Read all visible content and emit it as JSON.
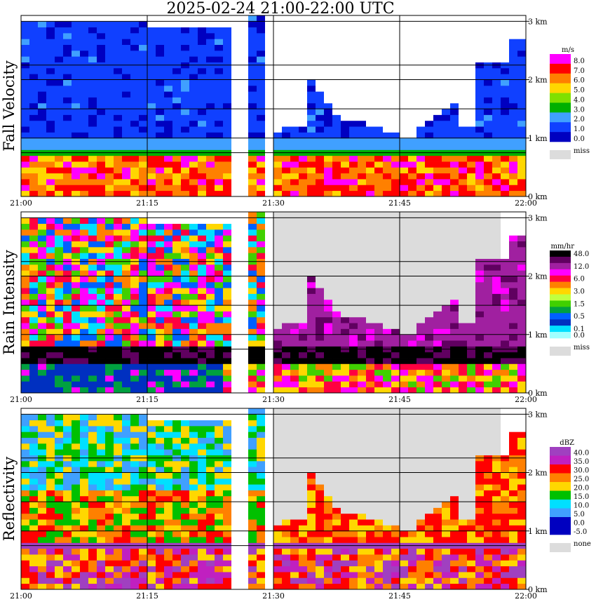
{
  "title": "2025-02-24   21:00-22:00 UTC",
  "x_ticks": [
    "21:00",
    "21:15",
    "21:30",
    "21:45",
    "22:00"
  ],
  "y_ticks": [
    "0 km",
    "1 km",
    "2 km",
    "3 km"
  ],
  "chart_data": [
    {
      "type": "heatmap",
      "ylabel": "Fall Velocity",
      "unit": "m/s",
      "xlim": [
        "21:00",
        "22:00"
      ],
      "ylim_km": [
        0,
        3.1
      ],
      "colorbar": [
        {
          "label": "8.0",
          "color": "#ff00ff"
        },
        {
          "label": "7.0",
          "color": "#ff0000"
        },
        {
          "label": "6.0",
          "color": "#ff8000"
        },
        {
          "label": "5.0",
          "color": "#ffd700"
        },
        {
          "label": "4.0",
          "color": "#80e000"
        },
        {
          "label": "3.0",
          "color": "#00b000"
        },
        {
          "label": "2.0",
          "color": "#40a0ff"
        },
        {
          "label": "1.0",
          "color": "#1040ff"
        },
        {
          "label": "0.0",
          "color": "#0000c0"
        }
      ],
      "missing_label": "miss",
      "missing_color": "#dcdcdc"
    },
    {
      "type": "heatmap",
      "ylabel": "Rain Intensity",
      "unit": "mm/hr",
      "xlim": [
        "21:00",
        "22:00"
      ],
      "ylim_km": [
        0,
        3.1
      ],
      "colorbar": [
        {
          "label": "48.0",
          "color": "#000000"
        },
        {
          "label": "",
          "color": "#600060"
        },
        {
          "label": "12.0",
          "color": "#a020a0"
        },
        {
          "label": "",
          "color": "#ff00ff"
        },
        {
          "label": "6.0",
          "color": "#ff0040"
        },
        {
          "label": "",
          "color": "#ff8000"
        },
        {
          "label": "3.0",
          "color": "#ffd700"
        },
        {
          "label": "",
          "color": "#c0ff40"
        },
        {
          "label": "1.5",
          "color": "#40d000"
        },
        {
          "label": "",
          "color": "#00a040"
        },
        {
          "label": "0.5",
          "color": "#0060ff"
        },
        {
          "label": "",
          "color": "#0030c0"
        },
        {
          "label": "0.1",
          "color": "#00e0ff"
        },
        {
          "label": "0.0",
          "color": "#a0ffff"
        }
      ],
      "missing_label": "miss",
      "missing_color": "#dcdcdc"
    },
    {
      "type": "heatmap",
      "ylabel": "Reflectivity",
      "unit": "dBZ",
      "xlim": [
        "21:00",
        "22:00"
      ],
      "ylim_km": [
        0,
        3.1
      ],
      "colorbar": [
        {
          "label": "40.0",
          "color": "#a040c0"
        },
        {
          "label": "35.0",
          "color": "#c020c0"
        },
        {
          "label": "30.0",
          "color": "#ff0000"
        },
        {
          "label": "25.0",
          "color": "#ff8000"
        },
        {
          "label": "20.0",
          "color": "#ffd700"
        },
        {
          "label": "15.0",
          "color": "#00c000"
        },
        {
          "label": "10.0",
          "color": "#00e0ff"
        },
        {
          "label": "5.0",
          "color": "#40a0ff"
        },
        {
          "label": "0.0",
          "color": "#0000c0"
        },
        {
          "label": "-5.0",
          "color": "#0000c0"
        }
      ],
      "missing_label": "none",
      "missing_color": "#dcdcdc"
    }
  ]
}
